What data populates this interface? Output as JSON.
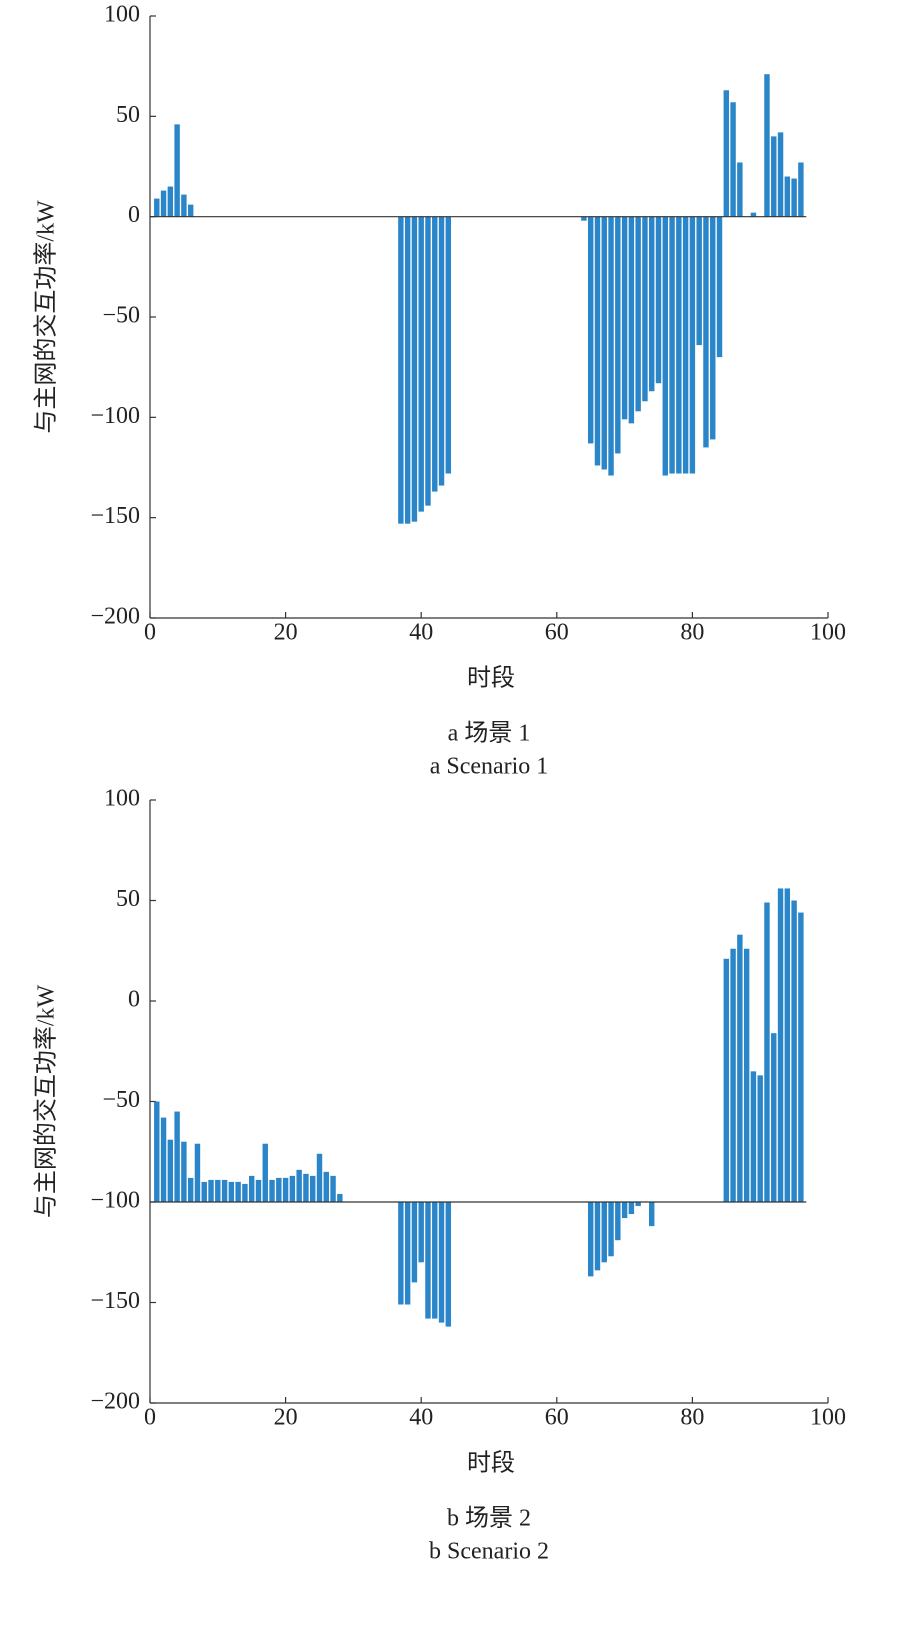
{
  "chart_data": [
    {
      "type": "bar",
      "ylabel": "与主网的交互功率/kW",
      "xlabel": "时段",
      "caption": "a 场景 1",
      "caption_en": "a Scenario 1",
      "color": "#2a86c9",
      "baseline": 0,
      "x": [
        1,
        2,
        3,
        4,
        5,
        6,
        7,
        8,
        9,
        10,
        11,
        12,
        13,
        14,
        15,
        16,
        17,
        18,
        19,
        20,
        21,
        22,
        23,
        24,
        25,
        26,
        27,
        28,
        29,
        30,
        31,
        32,
        33,
        34,
        35,
        36,
        37,
        38,
        39,
        40,
        41,
        42,
        43,
        44,
        45,
        46,
        47,
        48,
        49,
        50,
        51,
        52,
        53,
        54,
        55,
        56,
        57,
        58,
        59,
        60,
        61,
        62,
        63,
        64,
        65,
        66,
        67,
        68,
        69,
        70,
        71,
        72,
        73,
        74,
        75,
        76,
        77,
        78,
        79,
        80,
        81,
        82,
        83,
        84,
        85,
        86,
        87,
        88,
        89,
        90,
        91,
        92,
        93,
        94,
        95,
        96
      ],
      "values": [
        9,
        13,
        15,
        46,
        11,
        6,
        0,
        0,
        0,
        0,
        0,
        0,
        0,
        0,
        0,
        0,
        0,
        0,
        0,
        0,
        0,
        0,
        0,
        0,
        0,
        0,
        0,
        0,
        0,
        0,
        0,
        0,
        0,
        0,
        0,
        0,
        -153,
        -153,
        -152,
        -147,
        -144,
        -137,
        -134,
        -128,
        0,
        0,
        0,
        0,
        0,
        0,
        0,
        0,
        0,
        0,
        0,
        0,
        0,
        0,
        0,
        0,
        0,
        0,
        0,
        -2,
        -113,
        -124,
        -126,
        -129,
        -118,
        -101,
        -103,
        -97,
        -92,
        -87,
        -83,
        -129,
        -128,
        -128,
        -128,
        -128,
        -64,
        -115,
        -111,
        -70,
        63,
        57,
        27,
        0,
        2,
        0,
        71,
        40,
        42,
        20,
        19,
        27
      ],
      "xlim": [
        0,
        100
      ],
      "xticks": [
        0,
        20,
        40,
        60,
        80,
        100
      ],
      "ylim": [
        -200,
        100
      ],
      "yticks": [
        {
          "value": -200,
          "label": "−200"
        },
        {
          "value": -150,
          "label": "−150"
        },
        {
          "value": -100,
          "label": "−100"
        },
        {
          "value": -50,
          "label": "−50"
        },
        0,
        50,
        100
      ]
    },
    {
      "type": "bar",
      "ylabel": "与主网的交互功率/kW",
      "xlabel": "时段",
      "caption": "b 场景 2",
      "caption_en": "b Scenario 2",
      "color": "#2a86c9",
      "baseline": -100,
      "x": [
        1,
        2,
        3,
        4,
        5,
        6,
        7,
        8,
        9,
        10,
        11,
        12,
        13,
        14,
        15,
        16,
        17,
        18,
        19,
        20,
        21,
        22,
        23,
        24,
        25,
        26,
        27,
        28,
        29,
        30,
        31,
        32,
        33,
        34,
        35,
        36,
        37,
        38,
        39,
        40,
        41,
        42,
        43,
        44,
        45,
        46,
        47,
        48,
        49,
        50,
        51,
        52,
        53,
        54,
        55,
        56,
        57,
        58,
        59,
        60,
        61,
        62,
        63,
        64,
        65,
        66,
        67,
        68,
        69,
        70,
        71,
        72,
        73,
        74,
        75,
        76,
        77,
        78,
        79,
        80,
        81,
        82,
        83,
        84,
        85,
        86,
        87,
        88,
        89,
        90,
        91,
        92,
        93,
        94,
        95,
        96
      ],
      "values": [
        -50,
        -58,
        -69,
        -55,
        -70,
        -88,
        -71,
        -90,
        -89,
        -89,
        -89,
        -90,
        -90,
        -91,
        -87,
        -89,
        -71,
        -89,
        -88,
        -88,
        -87,
        -84,
        -86,
        -87,
        -76,
        -85,
        -87,
        -96,
        -100,
        -100,
        -100,
        -100,
        -100,
        -100,
        -100,
        -100,
        -151,
        -151,
        -140,
        -130,
        -158,
        -158,
        -160,
        -162,
        -100,
        -100,
        -100,
        -100,
        -100,
        -100,
        -100,
        -100,
        -100,
        -100,
        -100,
        -100,
        -100,
        -100,
        -100,
        -100,
        -100,
        -100,
        -100,
        -100,
        -137,
        -134,
        -130,
        -127,
        -119,
        -108,
        -106,
        -102,
        -100,
        -112,
        -100,
        -100,
        -100,
        -100,
        -100,
        -100,
        -100,
        -100,
        -100,
        -100,
        21,
        26,
        33,
        26,
        -35,
        -37,
        49,
        -16,
        56,
        56,
        50,
        44
      ],
      "xlim": [
        0,
        100
      ],
      "xticks": [
        0,
        20,
        40,
        60,
        80,
        100
      ],
      "ylim": [
        -200,
        100
      ],
      "yticks": [
        {
          "value": -200,
          "label": "−200"
        },
        {
          "value": -150,
          "label": "−150"
        },
        {
          "value": -100,
          "label": "−100"
        },
        {
          "value": -50,
          "label": "−50"
        },
        0,
        50,
        100
      ]
    }
  ]
}
